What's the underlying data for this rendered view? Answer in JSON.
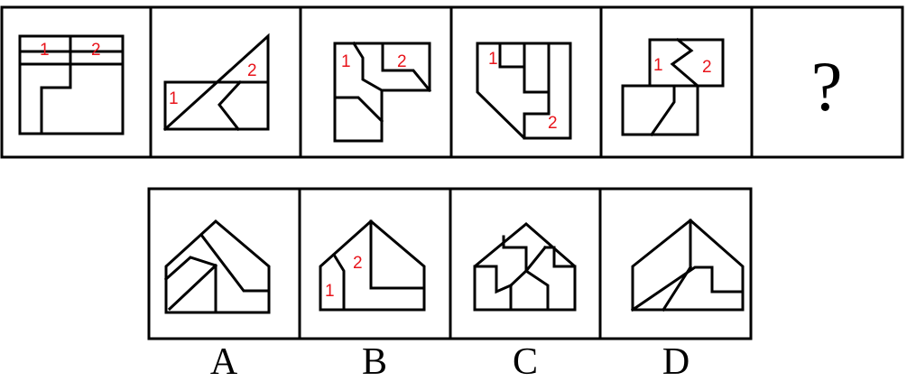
{
  "question_mark": "?",
  "labels": {
    "one": "1",
    "two": "2"
  },
  "options": [
    "A",
    "B",
    "C",
    "D"
  ],
  "colors": {
    "line": "#000000",
    "label": "#e8141b",
    "background": "#ffffff"
  }
}
